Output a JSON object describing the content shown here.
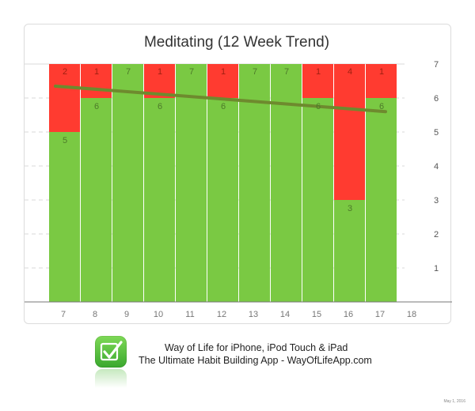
{
  "chart_data": {
    "type": "bar",
    "stacked": true,
    "title": "Meditating (12 Week Trend)",
    "categories": [
      "7",
      "8",
      "9",
      "10",
      "11",
      "12",
      "13",
      "14",
      "15",
      "16",
      "17",
      "18"
    ],
    "series": [
      {
        "values": [
          5,
          6,
          7,
          6,
          7,
          6,
          7,
          7,
          6,
          3,
          6,
          null
        ],
        "labels": [
          "5",
          "6",
          "7",
          "6",
          "7",
          "6",
          "7",
          "7",
          "6",
          "3",
          "6",
          ""
        ]
      },
      {
        "values": [
          2,
          1,
          0,
          1,
          0,
          1,
          0,
          0,
          1,
          4,
          1,
          null
        ],
        "labels": [
          "2",
          "1",
          "",
          "1",
          "",
          "1",
          "",
          "",
          "1",
          "4",
          "1",
          ""
        ]
      }
    ],
    "trend": {
      "start": 6.35,
      "end": 5.6
    },
    "ylim": [
      0,
      7
    ],
    "yticks": [
      "1",
      "2",
      "3",
      "4",
      "5",
      "6",
      "7"
    ],
    "grid": true,
    "colors": {
      "done": "#7ac943",
      "missed": "#ff3b30",
      "trend": "#6e8a2e",
      "bar_text": "#4d7a2a",
      "missed_text": "#a02010"
    }
  },
  "footer": {
    "line1": "Way of Life for iPhone, iPod Touch & iPad",
    "line2": "The Ultimate Habit Building App - WayOfLifeApp.com",
    "app_icon": "checkmark-icon"
  },
  "date_stamp": "May 1, 2016"
}
